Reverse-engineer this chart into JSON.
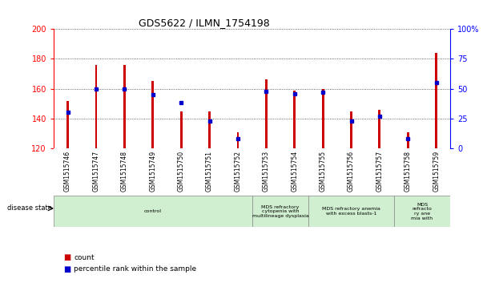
{
  "title": "GDS5622 / ILMN_1754198",
  "samples": [
    "GSM1515746",
    "GSM1515747",
    "GSM1515748",
    "GSM1515749",
    "GSM1515750",
    "GSM1515751",
    "GSM1515752",
    "GSM1515753",
    "GSM1515754",
    "GSM1515755",
    "GSM1515756",
    "GSM1515757",
    "GSM1515758",
    "GSM1515759"
  ],
  "counts": [
    152,
    176,
    176,
    165,
    145,
    145,
    131,
    166,
    159,
    160,
    145,
    146,
    131,
    184
  ],
  "percentile_ranks": [
    30,
    50,
    50,
    45,
    38,
    23,
    8,
    48,
    46,
    47,
    23,
    27,
    8,
    55
  ],
  "bar_color": "#cc0000",
  "dot_color": "#0000cc",
  "ylim_left": [
    120,
    200
  ],
  "ylim_right": [
    0,
    100
  ],
  "yticks_left": [
    120,
    140,
    160,
    180,
    200
  ],
  "yticks_right": [
    0,
    25,
    50,
    75,
    100
  ],
  "grid_color": "#333333",
  "xlabels_bg": "#d0d0d0",
  "disease_groups": [
    {
      "label": "control",
      "start": 0,
      "end": 7,
      "color": "#d0efd0"
    },
    {
      "label": "MDS refractory\ncytopenia with\nmultilineage dysplasia",
      "start": 7,
      "end": 9,
      "color": "#d0efd0"
    },
    {
      "label": "MDS refractory anemia\nwith excess blasts-1",
      "start": 9,
      "end": 12,
      "color": "#d0efd0"
    },
    {
      "label": "MDS\nrefracto\nry ane\nmia with",
      "start": 12,
      "end": 14,
      "color": "#d0efd0"
    }
  ],
  "disease_state_label": "disease state",
  "legend_count_label": "count",
  "legend_percentile_label": "percentile rank within the sample",
  "bar_width": 0.08
}
